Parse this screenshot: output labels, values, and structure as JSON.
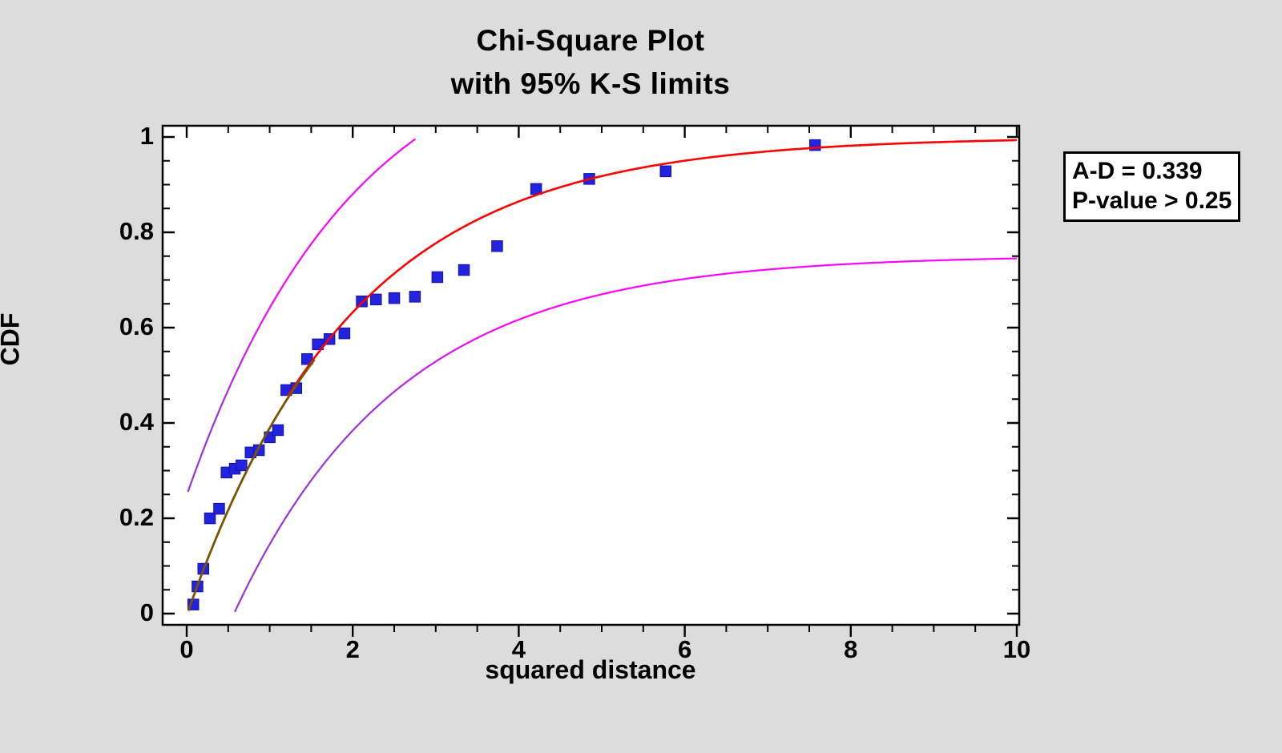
{
  "page": {
    "background": "#dcdcdc",
    "plot_background": "#ffffff",
    "frame_color": "#000000"
  },
  "title": {
    "line1": "Chi-Square Plot",
    "line2": "with 95% K-S limits"
  },
  "annotation": {
    "line1": "A-D = 0.339",
    "line2": "P-value > 0.25"
  },
  "axes": {
    "x": {
      "label": "squared distance",
      "range": [
        0,
        10
      ],
      "major_ticks": [
        0,
        2,
        4,
        6,
        8,
        10
      ],
      "major_tick_labels": [
        "0",
        "2",
        "4",
        "6",
        "8",
        "10"
      ],
      "minor_step": 0.5
    },
    "y": {
      "label": "CDF",
      "range": [
        0,
        1
      ],
      "major_ticks": [
        0,
        0.2,
        0.4,
        0.6,
        0.8,
        1
      ],
      "major_tick_labels": [
        "0",
        "0.2",
        "0.4",
        "0.6",
        "0.8",
        "1"
      ],
      "minor_step": 0.05
    }
  },
  "chart_data": {
    "type": "scatter",
    "title": "Chi-Square Plot",
    "subtitle": "with 95% K-S limits",
    "xlabel": "squared distance",
    "ylabel": "CDF",
    "xlim": [
      0,
      10
    ],
    "ylim": [
      0,
      1
    ],
    "grid": false,
    "ad_statistic": "A-D = 0.339",
    "p_value": "P-value > 0.25",
    "points_color": "#2323dd",
    "points": [
      [
        0.08,
        0.019
      ],
      [
        0.13,
        0.057
      ],
      [
        0.2,
        0.094
      ],
      [
        0.28,
        0.2
      ],
      [
        0.39,
        0.22
      ],
      [
        0.48,
        0.296
      ],
      [
        0.58,
        0.304
      ],
      [
        0.66,
        0.311
      ],
      [
        0.77,
        0.338
      ],
      [
        0.87,
        0.343
      ],
      [
        1.0,
        0.37
      ],
      [
        1.1,
        0.385
      ],
      [
        1.2,
        0.469
      ],
      [
        1.32,
        0.473
      ],
      [
        1.45,
        0.534
      ],
      [
        1.58,
        0.565
      ],
      [
        1.72,
        0.576
      ],
      [
        1.9,
        0.588
      ],
      [
        2.11,
        0.655
      ],
      [
        2.28,
        0.659
      ],
      [
        2.5,
        0.662
      ],
      [
        2.75,
        0.665
      ],
      [
        3.02,
        0.706
      ],
      [
        3.34,
        0.721
      ],
      [
        3.74,
        0.771
      ],
      [
        4.21,
        0.891
      ],
      [
        4.85,
        0.912
      ],
      [
        5.77,
        0.928
      ],
      [
        7.57,
        0.983
      ]
    ],
    "fitted_curve": {
      "name": "chi-square(2) CDF",
      "formula": "F(x) = 1 - exp(-x/2)",
      "rate": 0.5,
      "color": "#ff0000",
      "low_x_overlay_color": "#7a5200",
      "x_range": [
        0,
        10
      ]
    },
    "ks_limits": {
      "confidence": "95%",
      "offset": 0.248,
      "color_shallow": "#ff00ff",
      "color_steep": "#9933dd",
      "upper_end_x": 2.78,
      "lower_start_x": 0.58
    }
  }
}
